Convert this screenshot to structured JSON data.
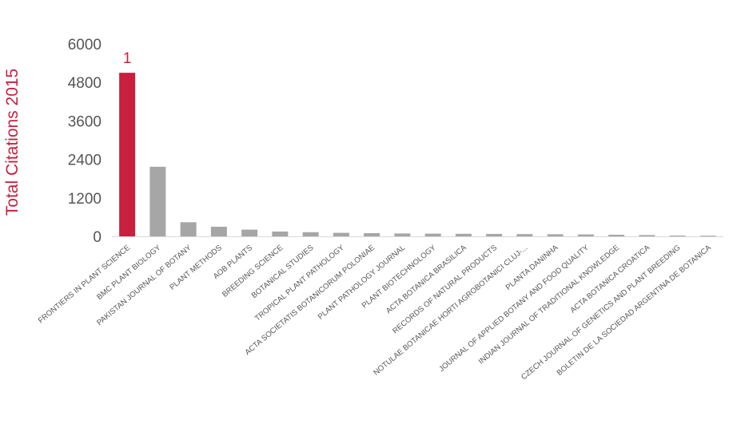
{
  "chart_data": {
    "type": "bar",
    "title": "",
    "xlabel": "",
    "ylabel": "Total Citations 2015",
    "ylim": [
      0,
      6000
    ],
    "yticks": [
      0,
      1200,
      2400,
      3600,
      4800,
      6000
    ],
    "grid": false,
    "highlight_index": 0,
    "highlight_annotation": "1",
    "colors": {
      "highlight": "#c8203e",
      "bar": "#a6a6a6",
      "axis_label": "#c8203e",
      "tick_text": "#555555",
      "axis_line": "#d9d9d9"
    },
    "categories": [
      "FRONTIERS IN PLANT SCIENCE",
      "BMC PLANT BIOLOGY",
      "PAKISTAN JOURNAL OF BOTANY",
      "PLANT METHODS",
      "AOB PLANTS",
      "BREEDING SCIENCE",
      "BOTANICAL STUDIES",
      "TROPICAL PLANT PATHOLOGY",
      "ACTA SOCIETATIS BOTANICORUM POLONIAE",
      "PLANT PATHOLOGY JOURNAL",
      "PLANT BIOTECHNOLOGY",
      "ACTA BOTANICA BRASILICA",
      "RECORDS OF NATURAL PRODUCTS",
      "NOTULAE BOTANICAE HORTI AGROBOTANICI CLUJ-...",
      "PLANTA DANINHA",
      "JOURNAL OF APPLIED BOTANY AND FOOD QUALITY",
      "INDIAN JOURNAL OF TRADITIONAL KNOWLEDGE",
      "ACTA BOTANICA CROATICA",
      "CZECH JOURNAL OF GENETICS AND PLANT BREEDING",
      "BOLETIN DE LA SOCIEDAD ARGENTINA DE BOTANICA"
    ],
    "values": [
      5100,
      2170,
      440,
      300,
      210,
      150,
      130,
      110,
      100,
      90,
      85,
      80,
      75,
      70,
      65,
      60,
      50,
      40,
      25,
      20
    ]
  }
}
